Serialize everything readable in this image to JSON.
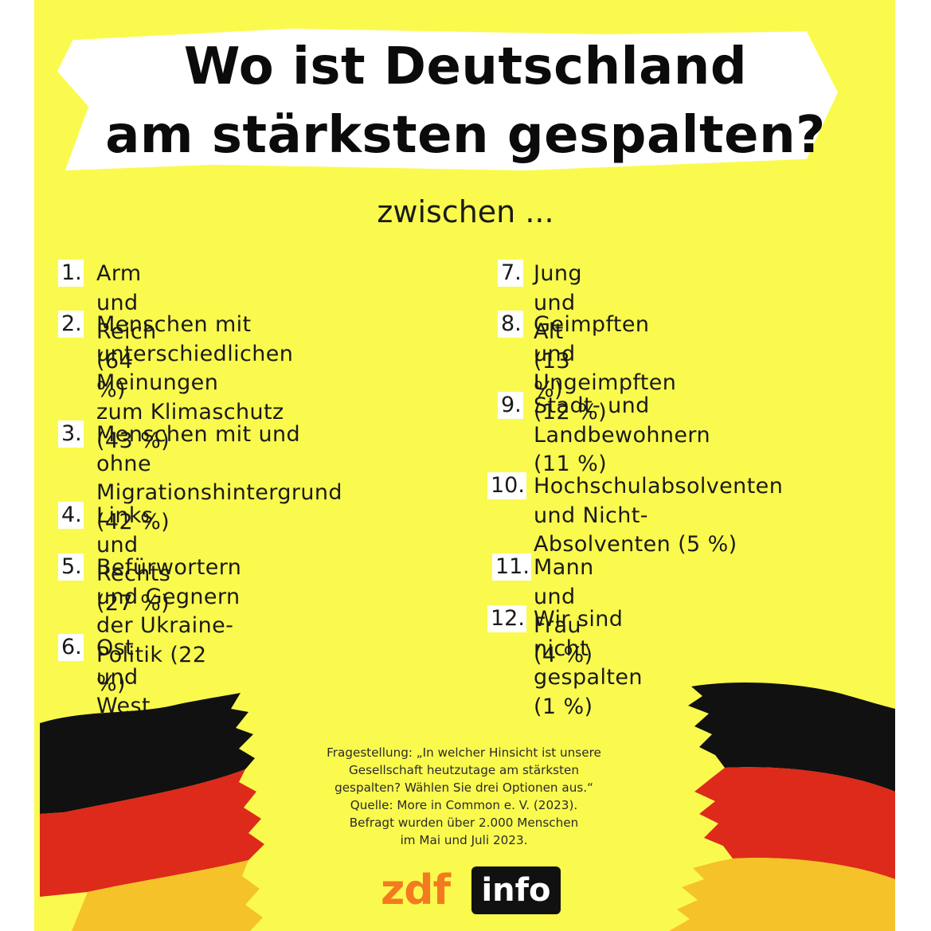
{
  "title": {
    "line1": "Wo ist Deutschland",
    "line2": "am stärksten gespalten?"
  },
  "subtitle": "zwischen ...",
  "items": [
    {
      "num": "1.",
      "lines": [
        "Arm und Reich (64 %)"
      ]
    },
    {
      "num": "2.",
      "lines": [
        "Menschen mit",
        "unterschiedlichen Meinungen",
        "zum Klimaschutz (43 %)"
      ]
    },
    {
      "num": "3.",
      "lines": [
        "Menschen mit und ohne",
        "Migrationshintergrund (42 %)"
      ]
    },
    {
      "num": "4.",
      "lines": [
        "Links und Rechts (27 %)"
      ]
    },
    {
      "num": "5.",
      "lines": [
        "Befürwortern und Gegnern",
        "der Ukraine-Politik (22 %)"
      ]
    },
    {
      "num": "6.",
      "lines": [
        "Ost und West (20 %)"
      ]
    },
    {
      "num": "7.",
      "lines": [
        "Jung und Alt (13 %)"
      ]
    },
    {
      "num": "8.",
      "lines": [
        "Geimpften und",
        "Ungeimpften (12 %)"
      ]
    },
    {
      "num": "9.",
      "lines": [
        "Stadt- und",
        "Landbewohnern (11 %)"
      ]
    },
    {
      "num": "10.",
      "lines": [
        "Hochschulabsolventen",
        "und Nicht-Absolventen (5 %)"
      ]
    },
    {
      "num": "11.",
      "lines": [
        "Mann und Frau (4 %)"
      ]
    },
    {
      "num": "12.",
      "lines": [
        "Wir sind nicht gespalten (1 %)"
      ]
    }
  ],
  "footnote": [
    "Fragestellung: „In welcher Hinsicht ist unsere",
    "Gesellschaft heutzutage am stärksten",
    "gespalten? Wählen Sie drei Optionen aus.“",
    "Quelle: More in Common e. V. (2023).",
    "Befragt wurden über 2.000 Menschen",
    "im Mai und Juli 2023."
  ],
  "logo": {
    "part1": "zdf",
    "part2": "info"
  },
  "colors": {
    "background": "#fafa4e",
    "flag_black": "#111111",
    "flag_red": "#dd2a1b",
    "flag_gold": "#f5c22a",
    "logo_orange": "#f47a20"
  }
}
